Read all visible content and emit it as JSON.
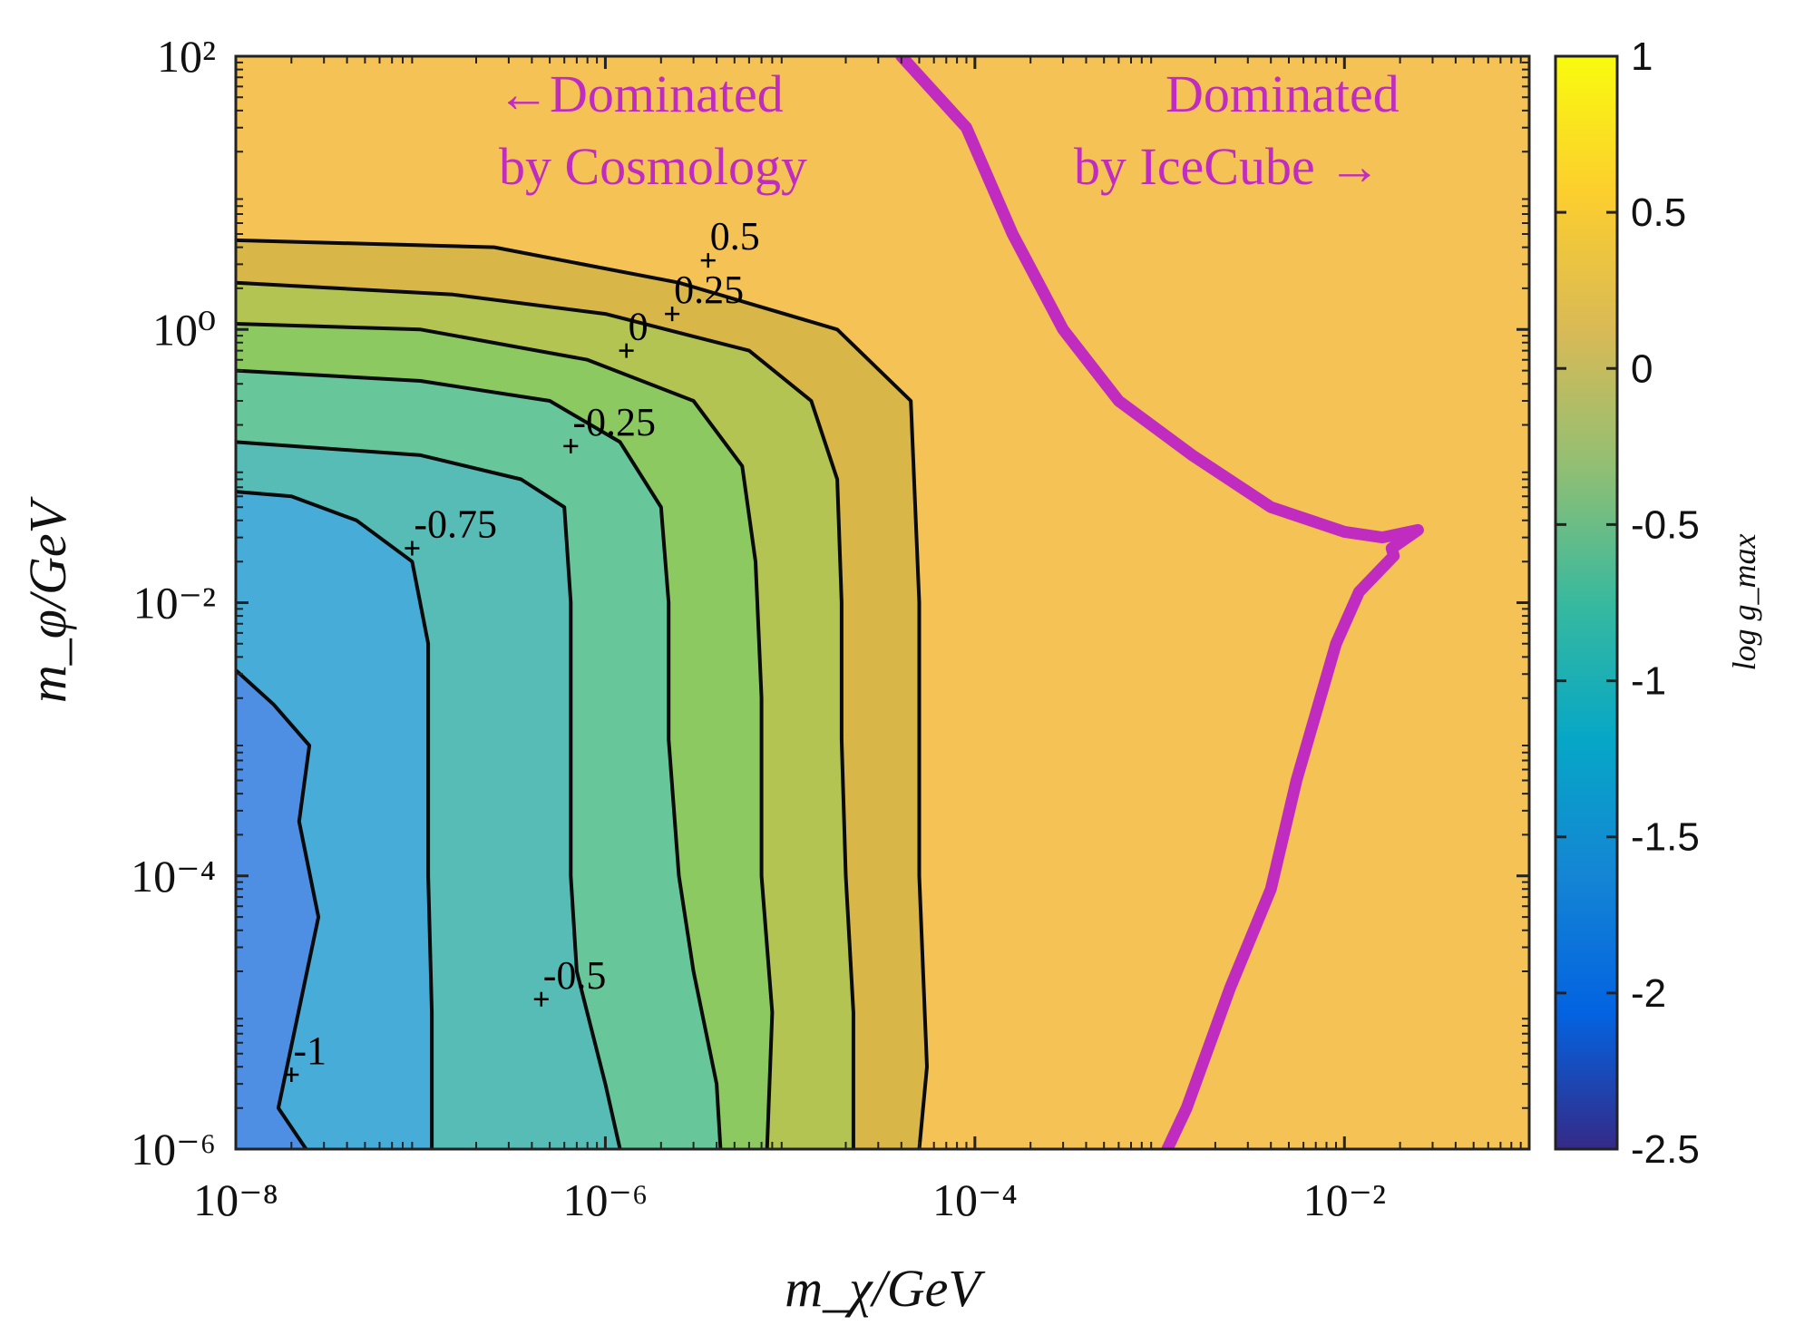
{
  "chart_data": {
    "type": "heatmap",
    "subtype": "filled-contour",
    "xlabel": "m_χ/GeV",
    "ylabel": "m_φ/GeV",
    "x_scale": "log",
    "y_scale": "log",
    "xlim": [
      1e-08,
      0.1
    ],
    "ylim": [
      1e-06,
      100
    ],
    "x_ticks": [
      {
        "value": 1e-08,
        "label": "10⁻⁸"
      },
      {
        "value": 1e-06,
        "label": "10⁻⁶"
      },
      {
        "value": 0.0001,
        "label": "10⁻⁴"
      },
      {
        "value": 0.01,
        "label": "10⁻²"
      }
    ],
    "y_ticks": [
      {
        "value": 1e-06,
        "label": "10⁻⁶"
      },
      {
        "value": 0.0001,
        "label": "10⁻⁴"
      },
      {
        "value": 0.01,
        "label": "10⁻²"
      },
      {
        "value": 1,
        "label": "10⁰"
      },
      {
        "value": 100,
        "label": "10²"
      }
    ],
    "colorbar": {
      "label": "log g_max",
      "range": [
        -2.5,
        1
      ],
      "ticks": [
        {
          "value": 1,
          "label": "1"
        },
        {
          "value": 0.5,
          "label": "0.5"
        },
        {
          "value": 0,
          "label": "0"
        },
        {
          "value": -0.5,
          "label": "-0.5"
        },
        {
          "value": -1,
          "label": "-1"
        },
        {
          "value": -1.5,
          "label": "-1.5"
        },
        {
          "value": -2,
          "label": "-2"
        },
        {
          "value": -2.5,
          "label": "-2.5"
        }
      ]
    },
    "background_level": 0.5,
    "contour_levels": [
      {
        "level": -1,
        "label": "-1",
        "fill_below": "#4f8fe3",
        "boundary": [
          [
            1e-08,
            0.0032
          ],
          [
            1.6e-08,
            0.0018
          ],
          [
            2.5e-08,
            0.0009
          ],
          [
            2.2e-08,
            0.00025
          ],
          [
            2.8e-08,
            5e-05
          ],
          [
            1.7e-08,
            2e-06
          ],
          [
            2.4e-08,
            1e-06
          ]
        ],
        "label_at": [
          2e-08,
          3.5e-06
        ]
      },
      {
        "level": -0.75,
        "label": "-0.75",
        "fill_below": "#47acd8",
        "boundary": [
          [
            1e-08,
            0.065
          ],
          [
            2e-08,
            0.06
          ],
          [
            4.5e-08,
            0.04
          ],
          [
            9e-08,
            0.02
          ],
          [
            1.1e-07,
            0.005
          ],
          [
            1.1e-07,
            0.0008
          ],
          [
            1.1e-07,
            0.0001
          ],
          [
            1.15e-07,
            1e-05
          ],
          [
            1.15e-07,
            1e-06
          ]
        ],
        "label_at": [
          9e-08,
          0.025
        ]
      },
      {
        "level": -0.5,
        "label": "-0.5",
        "fill_below": "#56bcb5",
        "boundary": [
          [
            1e-08,
            0.15
          ],
          [
            1e-07,
            0.12
          ],
          [
            3.5e-07,
            0.08
          ],
          [
            6e-07,
            0.05
          ],
          [
            6.5e-07,
            0.01
          ],
          [
            6.5e-07,
            0.001
          ],
          [
            6.5e-07,
            0.0001
          ],
          [
            7e-07,
            2e-05
          ],
          [
            1e-06,
            3e-06
          ],
          [
            1.2e-06,
            1e-06
          ]
        ],
        "label_at": [
          4.5e-07,
          1.25e-05
        ]
      },
      {
        "level": -0.25,
        "label": "-0.25",
        "fill_below": "#68c79a",
        "boundary": [
          [
            1e-08,
            0.5
          ],
          [
            1e-07,
            0.42
          ],
          [
            5e-07,
            0.3
          ],
          [
            1.2e-06,
            0.15
          ],
          [
            2e-06,
            0.05
          ],
          [
            2.2e-06,
            0.01
          ],
          [
            2.2e-06,
            0.001
          ],
          [
            2.5e-06,
            0.0001
          ],
          [
            3e-06,
            2e-05
          ],
          [
            4e-06,
            3e-06
          ],
          [
            4.2e-06,
            1e-06
          ]
        ],
        "label_at": [
          6.5e-07,
          0.14
        ]
      },
      {
        "level": 0,
        "label": "0",
        "fill_below": "#8cc961",
        "boundary": [
          [
            1e-08,
            1.1
          ],
          [
            1e-07,
            1.0
          ],
          [
            8e-07,
            0.6
          ],
          [
            3e-06,
            0.3
          ],
          [
            5.5e-06,
            0.1
          ],
          [
            6.5e-06,
            0.02
          ],
          [
            7e-06,
            0.002
          ],
          [
            7e-06,
            0.0001
          ],
          [
            8e-06,
            1e-05
          ],
          [
            7.5e-06,
            1e-06
          ]
        ],
        "label_at": [
          1.3e-06,
          0.7
        ]
      },
      {
        "level": 0.25,
        "label": "0.25",
        "fill_below": "#b3c452",
        "boundary": [
          [
            1e-08,
            2.2
          ],
          [
            1.5e-07,
            1.8
          ],
          [
            1e-06,
            1.3
          ],
          [
            6e-06,
            0.7
          ],
          [
            1.3e-05,
            0.3
          ],
          [
            1.8e-05,
            0.08
          ],
          [
            1.9e-05,
            0.01
          ],
          [
            1.9e-05,
            0.001
          ],
          [
            2e-05,
            0.0001
          ],
          [
            2.2e-05,
            1e-05
          ],
          [
            2.2e-05,
            1e-06
          ]
        ],
        "label_at": [
          2.3e-06,
          1.3
        ]
      },
      {
        "level": 0.5,
        "label": "0.5",
        "fill_below": "#d9b648",
        "boundary": [
          [
            1e-08,
            4.5
          ],
          [
            2.5e-07,
            4
          ],
          [
            2.5e-06,
            2.2
          ],
          [
            1.8e-05,
            1
          ],
          [
            4.5e-05,
            0.3
          ],
          [
            5e-05,
            0.01
          ],
          [
            5e-05,
            0.0001
          ],
          [
            5.5e-05,
            4e-06
          ],
          [
            5e-05,
            1e-06
          ]
        ],
        "label_at": [
          3.6e-06,
          3.2
        ]
      }
    ],
    "background_color": "#f4c255",
    "divider_curve": {
      "name": "cosmology-icecube-boundary",
      "color": "#c12cc0",
      "points": [
        [
          4e-05,
          100
        ],
        [
          9e-05,
          30
        ],
        [
          0.00016,
          5
        ],
        [
          0.0003,
          1
        ],
        [
          0.0006,
          0.3
        ],
        [
          0.0015,
          0.12
        ],
        [
          0.004,
          0.05
        ],
        [
          0.01,
          0.033
        ],
        [
          0.016,
          0.03
        ],
        [
          0.025,
          0.034
        ],
        [
          0.018,
          0.025
        ],
        [
          0.0185,
          0.022
        ],
        [
          0.012,
          0.012
        ],
        [
          0.009,
          0.005
        ],
        [
          0.0055,
          0.0005
        ],
        [
          0.004,
          8e-05
        ],
        [
          0.0024,
          1.5e-05
        ],
        [
          0.0014,
          2e-06
        ],
        [
          0.0011,
          1e-06
        ]
      ]
    },
    "annotations": [
      {
        "name": "cosmology-annotation",
        "lines": [
          "←Dominated",
          "by Cosmology"
        ],
        "color": "#c12cc0"
      },
      {
        "name": "icecube-annotation",
        "lines": [
          "Dominated",
          "by IceCube →"
        ],
        "color": "#c12cc0"
      }
    ],
    "colormap": [
      "#352a87",
      "#0363e1",
      "#1485d4",
      "#06a7c6",
      "#38b99e",
      "#92bf73",
      "#d9ba56",
      "#fcce2e",
      "#f9fb0e"
    ]
  }
}
